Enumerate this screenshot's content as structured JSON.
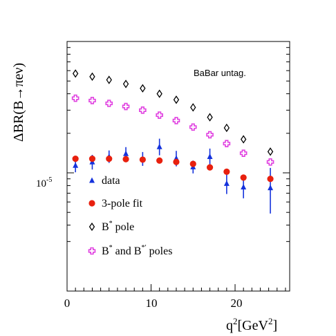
{
  "chart_data": {
    "type": "scatter",
    "ylabel": "ΔBR(B→πeν)",
    "xlabel": "q2[GeV2]",
    "annotation": "BaBar untag.",
    "x_ticks": [
      "0",
      "10",
      "20"
    ],
    "y_tick_label": "10-5",
    "xlim": [
      0,
      26.5
    ],
    "ylim_log10": [
      -5.9,
      -4.0
    ],
    "y_scale": "log",
    "legend_position": "lower-left inside",
    "x": [
      1,
      3,
      5,
      7,
      9,
      11,
      13,
      15,
      17,
      19,
      21,
      24.2
    ],
    "series": [
      {
        "name": "data",
        "marker": "triangle",
        "color": "#1432dc",
        "values": [
          1.14e-05,
          1.21e-05,
          1.33e-05,
          1.4e-05,
          1.28e-05,
          1.58e-05,
          1.29e-05,
          1.11e-05,
          1.33e-05,
          8.3e-06,
          7.8e-06,
          7.7e-06
        ],
        "err_low": [
          1.3e-06,
          1.5e-06,
          1.4e-06,
          1.6e-06,
          1.5e-06,
          2.2e-06,
          1.7e-06,
          1.2e-06,
          1.9e-06,
          1.4e-06,
          1.4e-06,
          2.8e-06
        ],
        "err_high": [
          1.4e-06,
          1.6e-06,
          1.5e-06,
          1.7e-06,
          1.6e-06,
          2.4e-06,
          1.8e-06,
          1.3e-06,
          2e-06,
          1.6e-06,
          1.6e-06,
          3.2e-06
        ]
      },
      {
        "name": "3-pole fit",
        "marker": "circle",
        "color": "#e8200e",
        "values": [
          1.28e-05,
          1.28e-05,
          1.28e-05,
          1.27e-05,
          1.26e-05,
          1.24e-05,
          1.21e-05,
          1.17e-05,
          1.1e-05,
          1.02e-05,
          9.2e-06,
          9e-06
        ]
      },
      {
        "name": "B* pole",
        "marker": "diamond",
        "color": "#000000",
        "values": [
          5.7e-05,
          5.4e-05,
          5.1e-05,
          4.75e-05,
          4.4e-05,
          4e-05,
          3.6e-05,
          3.15e-05,
          2.65e-05,
          2.2e-05,
          1.8e-05,
          1.45e-05
        ]
      },
      {
        "name": "B* and B*′ poles",
        "marker": "cross",
        "color": "#e040e0",
        "values": [
          3.7e-05,
          3.55e-05,
          3.38e-05,
          3.2e-05,
          3e-05,
          2.75e-05,
          2.5e-05,
          2.23e-05,
          1.95e-05,
          1.67e-05,
          1.41e-05,
          1.21e-05
        ]
      }
    ]
  },
  "legend": {
    "items": [
      {
        "label": "data",
        "sup": ""
      },
      {
        "label": "3-pole fit",
        "sup": ""
      },
      {
        "label": "B",
        "sup": "*",
        "rest": " pole"
      },
      {
        "label": "B",
        "sup": "*",
        "rest": " and B",
        "sup2": "*′",
        "rest2": " poles"
      }
    ]
  }
}
